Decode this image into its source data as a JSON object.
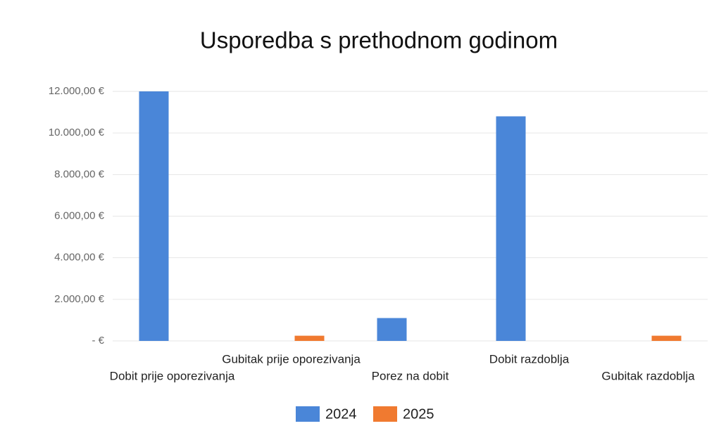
{
  "chart_data": {
    "type": "bar",
    "title": "Usporedba s prethodnom godinom",
    "categories": [
      "Dobit prije oporezivanja",
      "Gubitak prije oporezivanja",
      "Porez na dobit",
      "Dobit razdoblja",
      "Gubitak razdoblja"
    ],
    "series": [
      {
        "name": "2024",
        "color": "#4a86d8",
        "values": [
          12000,
          0,
          1100,
          10800,
          0
        ]
      },
      {
        "name": "2025",
        "color": "#f07a30",
        "values": [
          0,
          250,
          0,
          0,
          250
        ]
      }
    ],
    "ylim": [
      0,
      12000
    ],
    "yticks": [
      {
        "value": 0,
        "label": "-   €"
      },
      {
        "value": 2000,
        "label": "2.000,00 €"
      },
      {
        "value": 4000,
        "label": "4.000,00 €"
      },
      {
        "value": 6000,
        "label": "6.000,00 €"
      },
      {
        "value": 8000,
        "label": "8.000,00 €"
      },
      {
        "value": 10000,
        "label": "10.000,00 €"
      },
      {
        "value": 12000,
        "label": "12.000,00 €"
      }
    ],
    "grid": true,
    "legend": "bottom"
  }
}
